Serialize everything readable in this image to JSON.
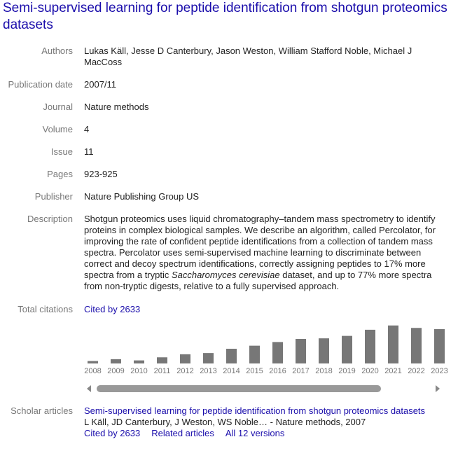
{
  "article": {
    "title": "Semi-supervised learning for peptide identification from shotgun proteomics datasets"
  },
  "fields": {
    "authors": {
      "label": "Authors",
      "value": "Lukas Käll, Jesse D Canterbury, Jason Weston, William Stafford Noble, Michael J MacCoss"
    },
    "publication_date": {
      "label": "Publication date",
      "value": "2007/11"
    },
    "journal": {
      "label": "Journal",
      "value": "Nature methods"
    },
    "volume": {
      "label": "Volume",
      "value": "4"
    },
    "issue": {
      "label": "Issue",
      "value": "11"
    },
    "pages": {
      "label": "Pages",
      "value": "923-925"
    },
    "publisher": {
      "label": "Publisher",
      "value": "Nature Publishing Group US"
    },
    "description": {
      "label": "Description",
      "part1": "Shotgun proteomics uses liquid chromatography–tandem mass spectrometry to identify proteins in complex biological samples. We describe an algorithm, called Percolator, for improving the rate of confident peptide identifications from a collection of tandem mass spectra. Percolator uses semi-supervised machine learning to discriminate between correct and decoy spectrum identifications, correctly assigning peptides to 17% more spectra from a tryptic ",
      "species": "Saccharomyces cerevisiae",
      "part2": " dataset, and up to 77% more spectra from non-tryptic digests, relative to a fully supervised approach."
    },
    "total_citations": {
      "label": "Total citations",
      "link": "Cited by 2633"
    },
    "scholar_articles": {
      "label": "Scholar articles",
      "title_link": "Semi-supervised learning for peptide identification from shotgun proteomics datasets",
      "byline": "L Käll, JD Canterbury, J Weston, WS Noble… - Nature methods, 2007",
      "cited_by": "Cited by 2633",
      "related": "Related articles",
      "versions": "All 12 versions"
    }
  },
  "colors": {
    "link": "#1a0dab",
    "bar": "#777777",
    "label": "#777777"
  },
  "chart_data": {
    "type": "bar",
    "categories": [
      "2008",
      "2009",
      "2010",
      "2011",
      "2012",
      "2013",
      "2014",
      "2015",
      "2016",
      "2017",
      "2018",
      "2019",
      "2020",
      "2021",
      "2022",
      "2023"
    ],
    "values": [
      20,
      35,
      25,
      50,
      75,
      85,
      120,
      145,
      175,
      200,
      205,
      225,
      275,
      310,
      290,
      280
    ],
    "ylim": [
      0,
      320
    ],
    "grid": false
  }
}
